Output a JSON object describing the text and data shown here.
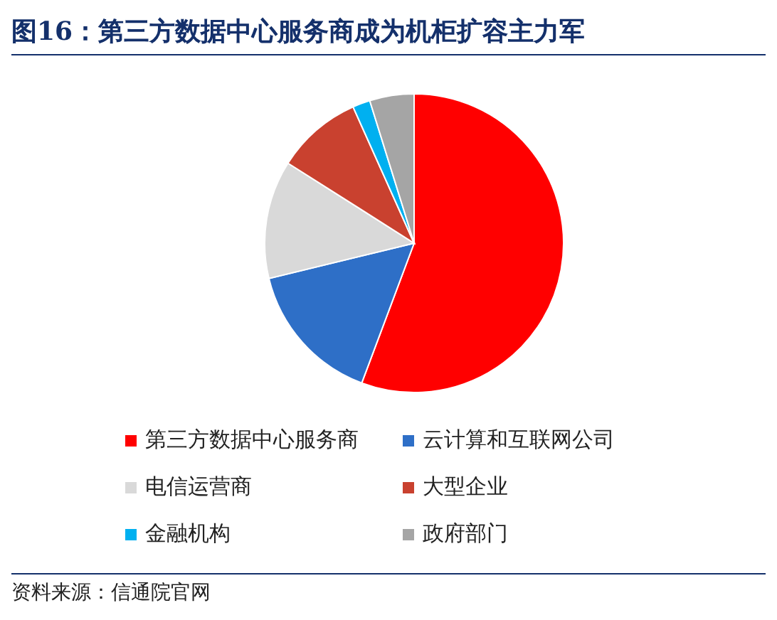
{
  "chart_data": {
    "type": "pie",
    "title": "图16：第三方数据中心服务商成为机柜扩容主力军",
    "categories": [
      "第三方数据中心服务商",
      "云计算和互联网公司",
      "电信运营商",
      "大型企业",
      "金融机构",
      "政府部门"
    ],
    "values": [
      55.7,
      15.5,
      12.8,
      9.3,
      1.9,
      4.8
    ],
    "colors": [
      "#ff0000",
      "#2e6fc7",
      "#d9d9d9",
      "#c9412f",
      "#00b0f0",
      "#a5a5a5"
    ],
    "legend": "bottom",
    "annotations": [
      "资料来源：信通院官网"
    ]
  }
}
